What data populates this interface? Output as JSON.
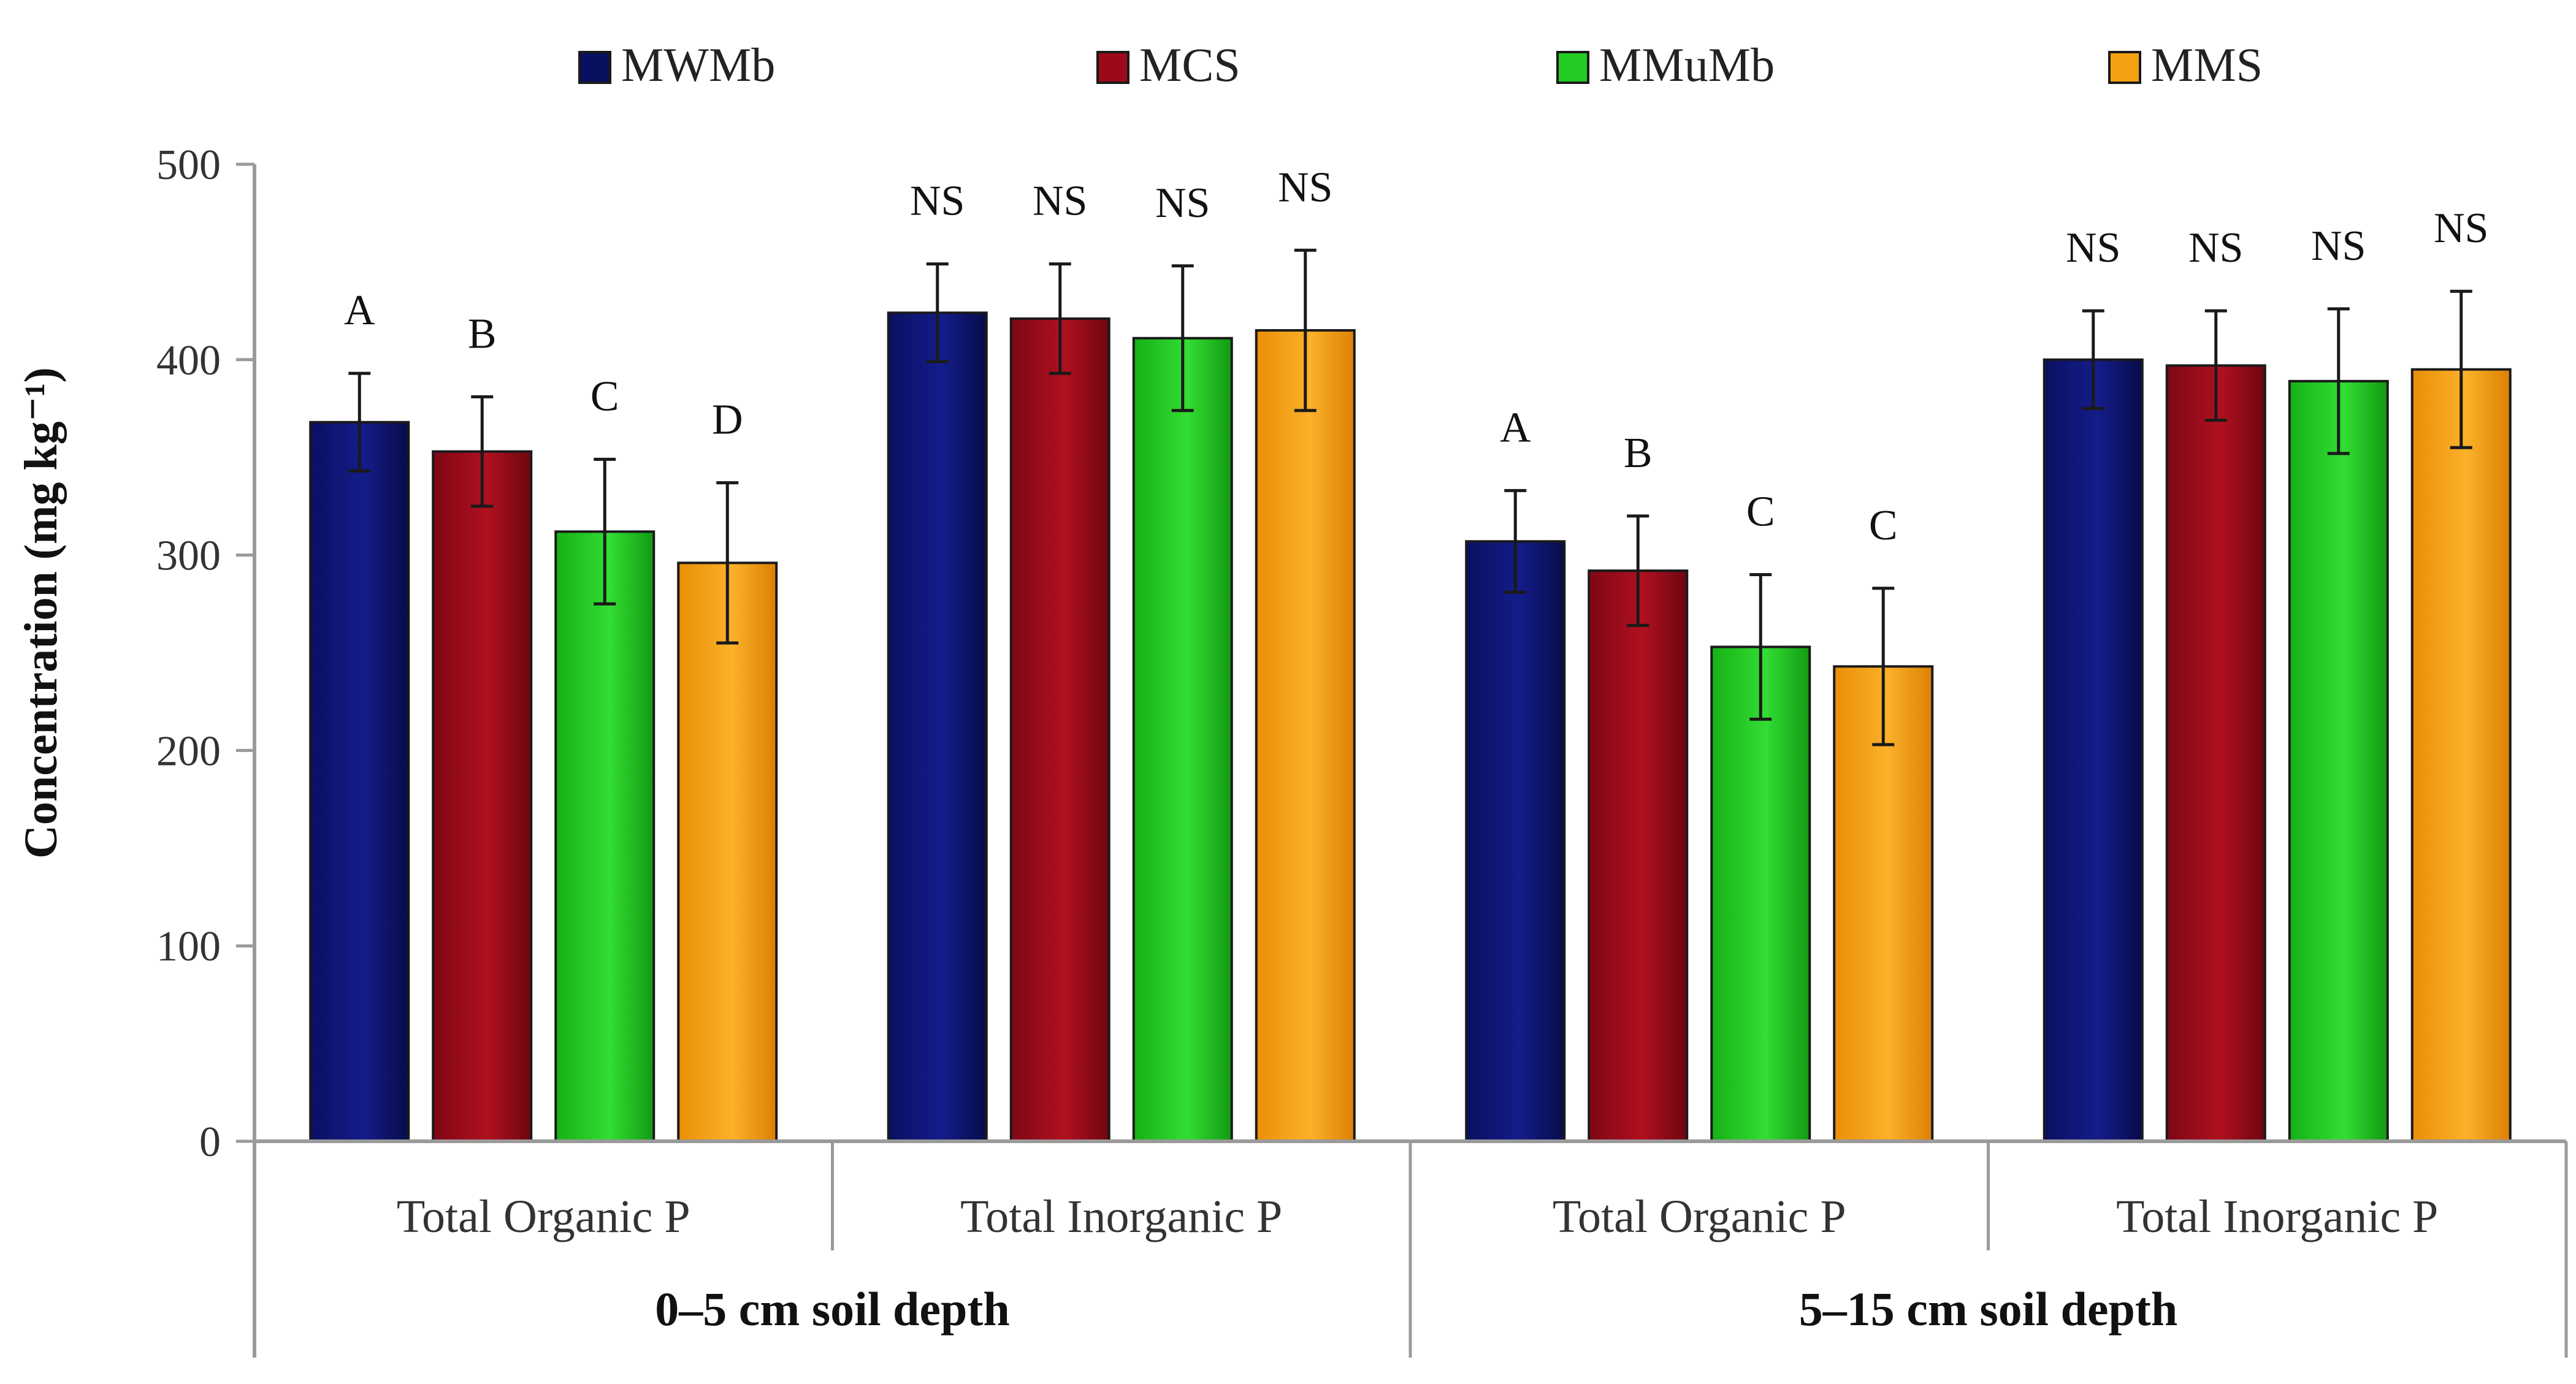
{
  "chart_data": {
    "type": "bar",
    "ylabel": "Concentration (mg kg⁻¹)",
    "ylim": [
      0,
      500
    ],
    "yticks": [
      0,
      100,
      200,
      300,
      400,
      500
    ],
    "grid": false,
    "legend_position": "top",
    "categories": [
      {
        "label": "Total Organic P",
        "group": 0
      },
      {
        "label": "Total Inorganic P",
        "group": 0
      },
      {
        "label": "Total Organic P",
        "group": 1
      },
      {
        "label": "Total Inorganic P",
        "group": 1
      }
    ],
    "groups": [
      "0–5 cm soil depth",
      "5–15 cm soil depth"
    ],
    "series": [
      {
        "name": "MWMb",
        "color": "#0a1060",
        "values": [
          368,
          424,
          307,
          400
        ],
        "errors": [
          25,
          25,
          26,
          25
        ],
        "letters": [
          "A",
          "NS",
          "A",
          "NS"
        ]
      },
      {
        "name": "MCS",
        "color": "#9c0a1a",
        "values": [
          353,
          421,
          292,
          397
        ],
        "errors": [
          28,
          28,
          28,
          28
        ],
        "letters": [
          "B",
          "NS",
          "B",
          "NS"
        ]
      },
      {
        "name": "MMuMb",
        "color": "#22cc22",
        "values": [
          312,
          411,
          253,
          389
        ],
        "errors": [
          37,
          37,
          37,
          37
        ],
        "letters": [
          "C",
          "NS",
          "C",
          "NS"
        ]
      },
      {
        "name": "MMS",
        "color": "#f5a010",
        "values": [
          296,
          415,
          243,
          395
        ],
        "errors": [
          41,
          41,
          40,
          40
        ],
        "letters": [
          "D",
          "NS",
          "C",
          "NS"
        ]
      }
    ]
  }
}
